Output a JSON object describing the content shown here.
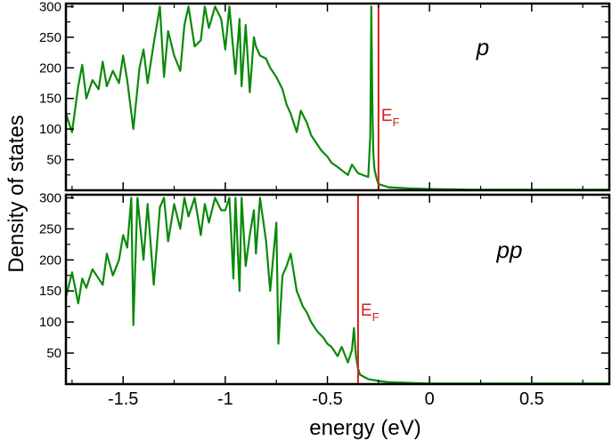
{
  "colors": {
    "series": "#0a8a0a",
    "fermi_line": "#d42020",
    "axis": "#000000",
    "background": "#ffffff"
  },
  "chart_data": [
    {
      "type": "line",
      "panel_label": "p",
      "ylabel": "Density of states",
      "xlabel": "energy (eV)",
      "xlim": [
        -1.78,
        0.88
      ],
      "ylim": [
        0,
        305
      ],
      "yticks": [
        50,
        100,
        150,
        200,
        250,
        300
      ],
      "grid": false,
      "legend": "none",
      "fermi_level": {
        "label": "E",
        "subscript": "F",
        "x": -0.25
      },
      "series": [
        {
          "x": [
            -1.78,
            -1.75,
            -1.72,
            -1.7,
            -1.68,
            -1.65,
            -1.62,
            -1.6,
            -1.58,
            -1.55,
            -1.52,
            -1.5,
            -1.48,
            -1.45,
            -1.42,
            -1.4,
            -1.38,
            -1.35,
            -1.32,
            -1.3,
            -1.28,
            -1.25,
            -1.22,
            -1.2,
            -1.18,
            -1.15,
            -1.12,
            -1.1,
            -1.08,
            -1.05,
            -1.02,
            -1.0,
            -0.98,
            -0.95,
            -0.93,
            -0.92,
            -0.9,
            -0.88,
            -0.86,
            -0.85,
            -0.83,
            -0.8,
            -0.78,
            -0.75,
            -0.72,
            -0.7,
            -0.68,
            -0.65,
            -0.63,
            -0.6,
            -0.58,
            -0.55,
            -0.53,
            -0.5,
            -0.48,
            -0.45,
            -0.42,
            -0.4,
            -0.38,
            -0.35,
            -0.32,
            -0.3,
            -0.29,
            -0.285,
            -0.28,
            -0.275,
            -0.27,
            -0.26,
            -0.25,
            -0.2,
            -0.1,
            0.0,
            0.2,
            0.5,
            0.88
          ],
          "y": [
            125,
            95,
            170,
            205,
            150,
            180,
            165,
            210,
            170,
            195,
            175,
            220,
            180,
            100,
            200,
            230,
            175,
            240,
            300,
            185,
            260,
            220,
            195,
            270,
            300,
            235,
            245,
            300,
            265,
            300,
            280,
            230,
            300,
            190,
            280,
            170,
            270,
            160,
            250,
            235,
            220,
            215,
            200,
            185,
            165,
            140,
            125,
            95,
            130,
            110,
            90,
            75,
            65,
            55,
            45,
            38,
            30,
            25,
            42,
            28,
            24,
            22,
            90,
            300,
            140,
            60,
            35,
            20,
            10,
            5,
            3,
            2,
            1,
            1,
            1
          ]
        }
      ]
    },
    {
      "type": "line",
      "panel_label": "pp",
      "ylabel": "Density of states",
      "xlabel": "energy (eV)",
      "xlim": [
        -1.78,
        0.88
      ],
      "ylim": [
        0,
        305
      ],
      "yticks": [
        50,
        100,
        150,
        200,
        250,
        300
      ],
      "xticks": [
        -1.5,
        -1,
        -0.5,
        0,
        0.5
      ],
      "xtick_labels": [
        "-1.5",
        "-1",
        "-0.5",
        "0",
        "0.5"
      ],
      "grid": false,
      "legend": "none",
      "fermi_level": {
        "label": "E",
        "subscript": "F",
        "x": -0.35
      },
      "series": [
        {
          "x": [
            -1.78,
            -1.75,
            -1.72,
            -1.7,
            -1.68,
            -1.65,
            -1.62,
            -1.6,
            -1.58,
            -1.55,
            -1.52,
            -1.5,
            -1.48,
            -1.46,
            -1.45,
            -1.43,
            -1.4,
            -1.38,
            -1.35,
            -1.32,
            -1.3,
            -1.28,
            -1.25,
            -1.22,
            -1.2,
            -1.18,
            -1.15,
            -1.12,
            -1.1,
            -1.08,
            -1.05,
            -1.02,
            -1.0,
            -0.98,
            -0.96,
            -0.95,
            -0.93,
            -0.92,
            -0.9,
            -0.88,
            -0.86,
            -0.85,
            -0.83,
            -0.8,
            -0.78,
            -0.75,
            -0.74,
            -0.72,
            -0.7,
            -0.68,
            -0.65,
            -0.62,
            -0.6,
            -0.58,
            -0.55,
            -0.52,
            -0.5,
            -0.48,
            -0.45,
            -0.43,
            -0.4,
            -0.38,
            -0.37,
            -0.36,
            -0.35,
            -0.34,
            -0.3,
            -0.25,
            -0.2,
            -0.1,
            0.0,
            0.2,
            0.5,
            0.88
          ],
          "y": [
            140,
            180,
            130,
            170,
            155,
            185,
            170,
            160,
            210,
            175,
            200,
            240,
            220,
            300,
            95,
            300,
            200,
            290,
            160,
            285,
            300,
            230,
            290,
            250,
            300,
            270,
            300,
            240,
            290,
            260,
            300,
            280,
            280,
            300,
            170,
            300,
            150,
            300,
            190,
            240,
            280,
            210,
            300,
            230,
            150,
            260,
            65,
            175,
            190,
            210,
            150,
            125,
            115,
            100,
            85,
            75,
            65,
            60,
            45,
            60,
            35,
            55,
            90,
            45,
            25,
            15,
            8,
            5,
            3,
            2,
            1,
            1,
            1,
            1
          ]
        }
      ]
    }
  ]
}
